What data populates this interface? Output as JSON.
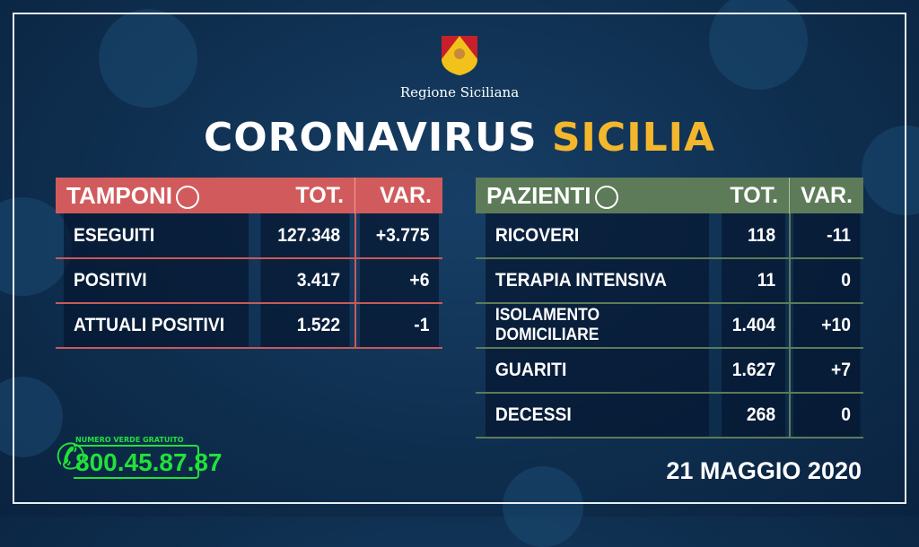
{
  "header": {
    "region": "Regione Siciliana",
    "title_main": "CORONAVIRUS",
    "title_accent": "SICILIA",
    "accent_color": "#f4b72c"
  },
  "tamponi": {
    "title": "TAMPONI",
    "icon": "swab-icon",
    "col_tot": "TOT.",
    "col_var": "VAR.",
    "color": "#d15b5c",
    "rows": [
      {
        "label": "ESEGUITI",
        "tot": "127.348",
        "var": "+3.775"
      },
      {
        "label": "POSITIVI",
        "tot": "3.417",
        "var": "+6"
      },
      {
        "label": "ATTUALI POSITIVI",
        "tot": "1.522",
        "var": "-1"
      }
    ]
  },
  "pazienti": {
    "title": "PAZIENTI",
    "icon": "person-icon",
    "col_tot": "TOT.",
    "col_var": "VAR.",
    "color": "#5d7b58",
    "rows": [
      {
        "label": "RICOVERI",
        "tot": "118",
        "var": "-11"
      },
      {
        "label": "TERAPIA INTENSIVA",
        "tot": "11",
        "var": "0"
      },
      {
        "label": "ISOLAMENTO DOMICILIARE",
        "tot": "1.404",
        "var": "+10"
      },
      {
        "label": "GUARITI",
        "tot": "1.627",
        "var": "+7"
      },
      {
        "label": "DECESSI",
        "tot": "268",
        "var": "0"
      }
    ]
  },
  "hotline": {
    "label": "NUMERO VERDE GRATUITO",
    "number": "800.45.87.87",
    "color": "#22e03a"
  },
  "date": "21 MAGGIO 2020"
}
